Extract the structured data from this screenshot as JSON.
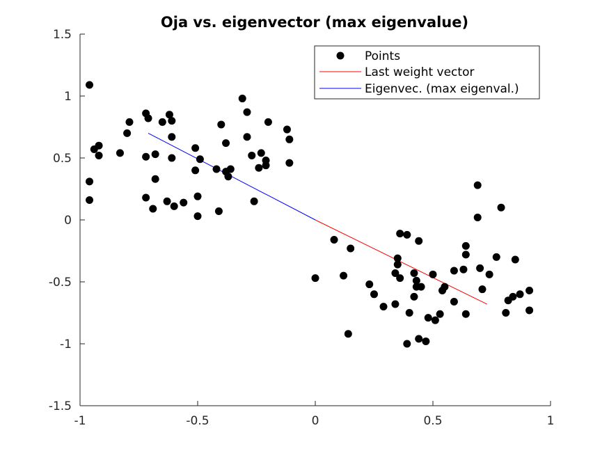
{
  "chart_data": {
    "type": "scatter",
    "title": "Oja vs. eigenvector (max eigenvalue)",
    "xlabel": "",
    "ylabel": "",
    "xlim": [
      -1,
      1
    ],
    "ylim": [
      -1.5,
      1.5
    ],
    "xticks": [
      -1,
      -0.5,
      0,
      0.5,
      1
    ],
    "xtick_labels": [
      "-1",
      "-0.5",
      "0",
      "0.5",
      "1"
    ],
    "yticks": [
      -1.5,
      -1,
      -0.5,
      0,
      0.5,
      1,
      1.5
    ],
    "ytick_labels": [
      "-1.5",
      "-1",
      "-0.5",
      "0",
      "0.5",
      "1",
      "1.5"
    ],
    "grid": false,
    "legend_position": "top-right",
    "legend": [
      "Points",
      "Last weight vector",
      "Eigenvec. (max eigenval.)"
    ],
    "colors": {
      "points": "#000000",
      "weight_vector": "#ff0000",
      "eigenvector": "#0000ff",
      "axes": "#262626"
    },
    "series": [
      {
        "name": "Points",
        "points": [
          [
            -0.96,
            1.09
          ],
          [
            -0.96,
            0.31
          ],
          [
            -0.96,
            0.16
          ],
          [
            -0.94,
            0.57
          ],
          [
            -0.92,
            0.6
          ],
          [
            -0.92,
            0.52
          ],
          [
            -0.83,
            0.54
          ],
          [
            -0.8,
            0.7
          ],
          [
            -0.79,
            0.79
          ],
          [
            -0.72,
            0.86
          ],
          [
            -0.71,
            0.82
          ],
          [
            -0.72,
            0.51
          ],
          [
            -0.72,
            0.18
          ],
          [
            -0.69,
            0.09
          ],
          [
            -0.68,
            0.53
          ],
          [
            -0.68,
            0.33
          ],
          [
            -0.65,
            0.79
          ],
          [
            -0.63,
            0.15
          ],
          [
            -0.62,
            0.85
          ],
          [
            -0.61,
            0.8
          ],
          [
            -0.61,
            0.67
          ],
          [
            -0.61,
            0.5
          ],
          [
            -0.6,
            0.11
          ],
          [
            -0.56,
            0.14
          ],
          [
            -0.51,
            0.58
          ],
          [
            -0.51,
            0.4
          ],
          [
            -0.5,
            0.19
          ],
          [
            -0.5,
            0.03
          ],
          [
            -0.49,
            0.49
          ],
          [
            -0.42,
            0.41
          ],
          [
            -0.41,
            0.07
          ],
          [
            -0.4,
            0.77
          ],
          [
            -0.38,
            0.39
          ],
          [
            -0.38,
            0.62
          ],
          [
            -0.37,
            0.35
          ],
          [
            -0.36,
            0.41
          ],
          [
            -0.31,
            0.98
          ],
          [
            -0.29,
            0.87
          ],
          [
            -0.29,
            0.67
          ],
          [
            -0.27,
            0.52
          ],
          [
            -0.26,
            0.15
          ],
          [
            -0.24,
            0.42
          ],
          [
            -0.23,
            0.54
          ],
          [
            -0.21,
            0.48
          ],
          [
            -0.21,
            0.44
          ],
          [
            -0.2,
            0.79
          ],
          [
            -0.12,
            0.73
          ],
          [
            -0.11,
            0.65
          ],
          [
            -0.11,
            0.46
          ],
          [
            0.0,
            -0.47
          ],
          [
            0.08,
            -0.16
          ],
          [
            0.12,
            -0.45
          ],
          [
            0.14,
            -0.92
          ],
          [
            0.15,
            -0.23
          ],
          [
            0.23,
            -0.52
          ],
          [
            0.25,
            -0.6
          ],
          [
            0.29,
            -0.7
          ],
          [
            0.34,
            -0.68
          ],
          [
            0.34,
            -0.43
          ],
          [
            0.35,
            -0.36
          ],
          [
            0.35,
            -0.31
          ],
          [
            0.36,
            -0.47
          ],
          [
            0.36,
            -0.11
          ],
          [
            0.39,
            -0.12
          ],
          [
            0.39,
            -1.0
          ],
          [
            0.4,
            -0.75
          ],
          [
            0.42,
            -0.62
          ],
          [
            0.42,
            -0.43
          ],
          [
            0.43,
            -0.49
          ],
          [
            0.43,
            -0.54
          ],
          [
            0.44,
            -0.17
          ],
          [
            0.44,
            -0.96
          ],
          [
            0.45,
            -0.54
          ],
          [
            0.47,
            -0.98
          ],
          [
            0.48,
            -0.79
          ],
          [
            0.5,
            -0.44
          ],
          [
            0.51,
            -0.81
          ],
          [
            0.53,
            -0.76
          ],
          [
            0.54,
            -0.57
          ],
          [
            0.55,
            -0.54
          ],
          [
            0.59,
            -0.66
          ],
          [
            0.59,
            -0.41
          ],
          [
            0.63,
            -0.4
          ],
          [
            0.64,
            -0.28
          ],
          [
            0.64,
            -0.21
          ],
          [
            0.64,
            -0.76
          ],
          [
            0.69,
            0.02
          ],
          [
            0.69,
            0.28
          ],
          [
            0.7,
            -0.39
          ],
          [
            0.71,
            -0.56
          ],
          [
            0.74,
            -0.44
          ],
          [
            0.77,
            -0.3
          ],
          [
            0.79,
            0.1
          ],
          [
            0.81,
            -0.75
          ],
          [
            0.82,
            -0.65
          ],
          [
            0.84,
            -0.62
          ],
          [
            0.85,
            -0.32
          ],
          [
            0.87,
            -0.6
          ],
          [
            0.91,
            -0.57
          ],
          [
            0.91,
            -0.73
          ]
        ]
      },
      {
        "name": "Last weight vector",
        "points": [
          [
            0,
            0
          ],
          [
            0.73,
            -0.68
          ]
        ]
      },
      {
        "name": "Eigenvec. (max eigenval.)",
        "points": [
          [
            0,
            0
          ],
          [
            -0.71,
            0.7
          ]
        ]
      }
    ]
  }
}
